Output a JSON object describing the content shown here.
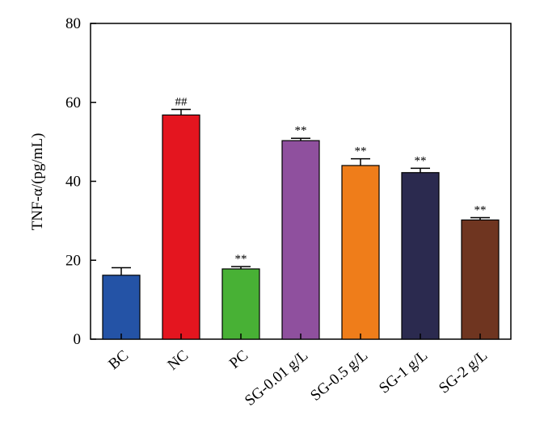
{
  "chart_data": {
    "type": "bar",
    "title": "",
    "xlabel": "",
    "ylabel": "TNF-α/(pg/mL)",
    "ylim": [
      0,
      80
    ],
    "yticks": [
      "0",
      "20",
      "40",
      "60",
      "80"
    ],
    "grid": false,
    "categories": [
      "BC",
      "NC",
      "PC",
      "SG-0.01 g/L",
      "SG-0.5 g/L",
      "SG-1 g/L",
      "SG-2 g/L"
    ],
    "values": [
      16.2,
      56.8,
      17.8,
      50.3,
      44.0,
      42.2,
      30.2
    ],
    "errors": [
      1.9,
      1.4,
      0.6,
      0.6,
      1.7,
      1.1,
      0.6
    ],
    "annotations": [
      "",
      "##",
      "**",
      "**",
      "**",
      "**",
      "**"
    ],
    "colors": [
      "#2453a6",
      "#e4151f",
      "#48b135",
      "#8f509e",
      "#ef7d1a",
      "#2b2a4f",
      "#6f3520"
    ]
  }
}
